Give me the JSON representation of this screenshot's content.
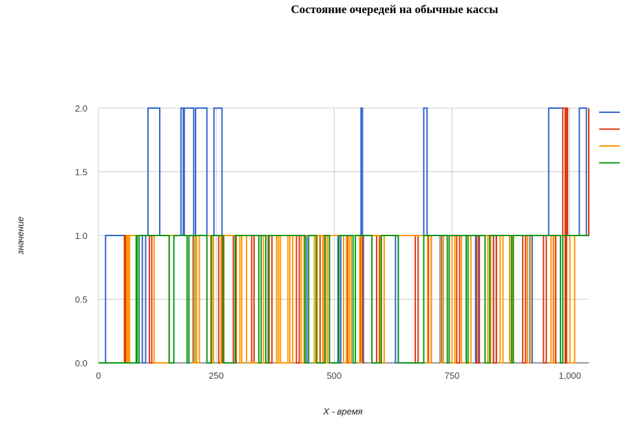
{
  "chart_data": {
    "type": "line",
    "title": "Состояние очередей на обычные кассы",
    "xlabel": "X - время",
    "ylabel": "значение",
    "xlim": [
      0,
      1040
    ],
    "ylim": [
      0,
      2
    ],
    "x_ticks": [
      0,
      250,
      500,
      750,
      1000
    ],
    "x_tick_labels": [
      "0",
      "250",
      "500",
      "750",
      "1,000"
    ],
    "y_ticks": [
      0,
      0.5,
      1,
      1.5,
      2
    ],
    "y_tick_labels": [
      "0.0",
      "0.5",
      "1.0",
      "1.5",
      "2.0"
    ],
    "grid": true,
    "legend": "right",
    "series": [
      {
        "color": "#3366cc",
        "steps": [
          [
            0,
            0
          ],
          [
            15,
            1
          ],
          [
            105,
            2
          ],
          [
            130,
            1
          ],
          [
            175,
            2
          ],
          [
            180,
            1
          ],
          [
            182,
            2
          ],
          [
            230,
            1
          ],
          [
            245,
            2
          ],
          [
            262,
            1
          ],
          [
            557,
            2
          ],
          [
            562,
            1
          ],
          [
            690,
            2
          ],
          [
            697,
            1
          ],
          [
            955,
            2
          ],
          [
            995,
            1
          ],
          [
            1020,
            2
          ],
          [
            1035,
            1
          ]
        ],
        "dips": [
          [
            93,
            100
          ],
          [
            202,
            206
          ],
          [
            262,
            266
          ],
          [
            438,
            442
          ],
          [
            508,
            514
          ],
          [
            560,
            565
          ],
          [
            630,
            636
          ],
          [
            725,
            728
          ],
          [
            800,
            806
          ],
          [
            838,
            844
          ],
          [
            915,
            920
          ]
        ]
      },
      {
        "color": "#dc3912",
        "steps": [
          [
            0,
            0
          ],
          [
            55,
            1
          ],
          [
            985,
            2
          ],
          [
            995,
            1
          ],
          [
            1040,
            2
          ]
        ],
        "dips": [
          [
            57,
            60
          ],
          [
            108,
            113
          ],
          [
            255,
            262
          ],
          [
            286,
            292
          ],
          [
            325,
            330
          ],
          [
            362,
            368
          ],
          [
            420,
            426
          ],
          [
            470,
            476
          ],
          [
            528,
            536
          ],
          [
            555,
            560
          ],
          [
            590,
            596
          ],
          [
            672,
            678
          ],
          [
            700,
            706
          ],
          [
            760,
            766
          ],
          [
            802,
            808
          ],
          [
            838,
            844
          ],
          [
            900,
            906
          ],
          [
            944,
            950
          ],
          [
            965,
            970
          ],
          [
            990,
            993
          ]
        ]
      },
      {
        "color": "#ff9900",
        "steps": [
          [
            0,
            0
          ],
          [
            60,
            1
          ]
        ],
        "dips": [
          [
            63,
            66
          ],
          [
            118,
            150
          ],
          [
            200,
            206
          ],
          [
            208,
            214
          ],
          [
            238,
            244
          ],
          [
            260,
            266
          ],
          [
            300,
            304
          ],
          [
            314,
            350
          ],
          [
            378,
            382
          ],
          [
            386,
            402
          ],
          [
            406,
            412
          ],
          [
            430,
            436
          ],
          [
            458,
            464
          ],
          [
            476,
            480
          ],
          [
            482,
            486
          ],
          [
            520,
            526
          ],
          [
            532,
            536
          ],
          [
            554,
            558
          ],
          [
            598,
            606
          ],
          [
            698,
            706
          ],
          [
            726,
            732
          ],
          [
            750,
            756
          ],
          [
            770,
            790
          ],
          [
            826,
            832
          ],
          [
            852,
            858
          ],
          [
            872,
            878
          ],
          [
            910,
            916
          ],
          [
            960,
            966
          ],
          [
            1000,
            1010
          ]
        ]
      },
      {
        "color": "#109618",
        "steps": [
          [
            0,
            0
          ],
          [
            80,
            1
          ]
        ],
        "dips": [
          [
            82,
            86
          ],
          [
            150,
            160
          ],
          [
            188,
            192
          ],
          [
            230,
            240
          ],
          [
            265,
            290
          ],
          [
            340,
            345
          ],
          [
            355,
            360
          ],
          [
            438,
            446
          ],
          [
            462,
            480
          ],
          [
            490,
            510
          ],
          [
            540,
            545
          ],
          [
            580,
            600
          ],
          [
            636,
            690
          ],
          [
            740,
            744
          ],
          [
            780,
            784
          ],
          [
            820,
            830
          ],
          [
            876,
            880
          ],
          [
            980,
            985
          ]
        ]
      }
    ]
  }
}
